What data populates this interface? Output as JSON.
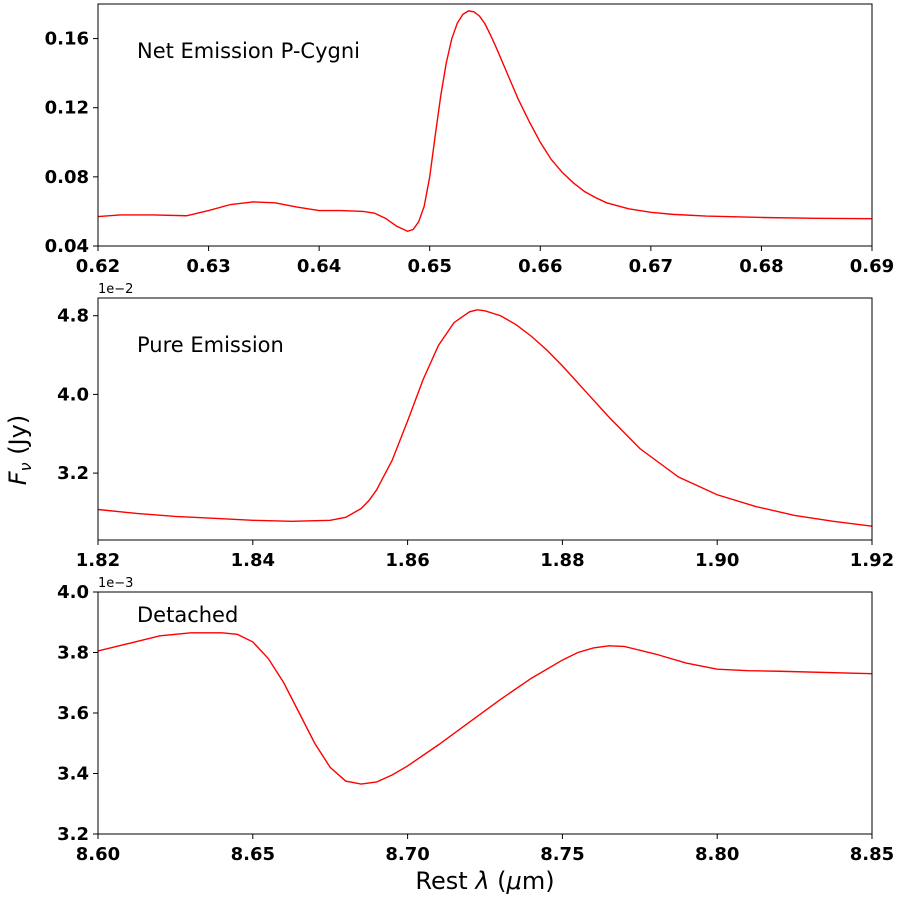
{
  "figure": {
    "ylabel": "F",
    "ylabel_sub": "ν",
    "ylabel_unit": " (Jy)",
    "xlabel_prefix": "Rest ",
    "xlabel_lambda": "λ",
    "xlabel_suffix_open": " (",
    "xlabel_mu": "μ",
    "xlabel_suffix_close": "m)",
    "line_color": "#ff0000"
  },
  "chart_data": [
    {
      "type": "line",
      "title": "",
      "annotation": "Net Emission P-Cygni",
      "offset_text": "",
      "xlim": [
        0.62,
        0.69
      ],
      "ylim": [
        0.04,
        0.18
      ],
      "xticks": [
        "0.62",
        "0.63",
        "0.64",
        "0.65",
        "0.66",
        "0.67",
        "0.68",
        "0.69"
      ],
      "yticks": [
        "0.04",
        "0.08",
        "0.12",
        "0.16"
      ],
      "series": [
        {
          "color": "#ff0000",
          "x": [
            0.62,
            0.622,
            0.625,
            0.628,
            0.63,
            0.632,
            0.634,
            0.636,
            0.638,
            0.64,
            0.642,
            0.644,
            0.645,
            0.646,
            0.647,
            0.648,
            0.6485,
            0.649,
            0.6495,
            0.65,
            0.6505,
            0.651,
            0.6515,
            0.652,
            0.6525,
            0.653,
            0.6535,
            0.654,
            0.6545,
            0.655,
            0.6555,
            0.656,
            0.657,
            0.658,
            0.659,
            0.66,
            0.661,
            0.662,
            0.663,
            0.664,
            0.665,
            0.666,
            0.668,
            0.67,
            0.672,
            0.675,
            0.68,
            0.685,
            0.69
          ],
          "y": [
            0.057,
            0.058,
            0.058,
            0.0575,
            0.0605,
            0.064,
            0.0655,
            0.065,
            0.0625,
            0.0605,
            0.0605,
            0.06,
            0.059,
            0.056,
            0.0515,
            0.0485,
            0.0495,
            0.054,
            0.063,
            0.08,
            0.104,
            0.127,
            0.146,
            0.16,
            0.169,
            0.174,
            0.176,
            0.1755,
            0.173,
            0.1685,
            0.162,
            0.155,
            0.14,
            0.125,
            0.112,
            0.1,
            0.09,
            0.0825,
            0.0765,
            0.0715,
            0.068,
            0.065,
            0.0615,
            0.0595,
            0.0583,
            0.0573,
            0.0565,
            0.056,
            0.0558
          ]
        }
      ]
    },
    {
      "type": "line",
      "title": "",
      "annotation": "Pure Emission",
      "offset_text": "1e−2",
      "xlim": [
        1.82,
        1.92
      ],
      "ylim": [
        2.52,
        4.98
      ],
      "xticks": [
        "1.82",
        "1.84",
        "1.86",
        "1.88",
        "1.90",
        "1.92"
      ],
      "yticks": [
        "3.2",
        "4.0",
        "4.8"
      ],
      "series": [
        {
          "color": "#ff0000",
          "x": [
            1.82,
            1.825,
            1.83,
            1.835,
            1.84,
            1.845,
            1.85,
            1.852,
            1.854,
            1.855,
            1.856,
            1.858,
            1.86,
            1.862,
            1.864,
            1.866,
            1.868,
            1.869,
            1.87,
            1.872,
            1.874,
            1.876,
            1.878,
            1.88,
            1.883,
            1.886,
            1.89,
            1.895,
            1.9,
            1.905,
            1.91,
            1.915,
            1.92
          ],
          "y": [
            2.83,
            2.79,
            2.76,
            2.74,
            2.72,
            2.71,
            2.72,
            2.75,
            2.84,
            2.92,
            3.03,
            3.33,
            3.73,
            4.15,
            4.5,
            4.73,
            4.84,
            4.86,
            4.85,
            4.8,
            4.71,
            4.59,
            4.45,
            4.29,
            4.03,
            3.77,
            3.45,
            3.16,
            2.98,
            2.86,
            2.77,
            2.71,
            2.66
          ]
        }
      ]
    },
    {
      "type": "line",
      "title": "",
      "annotation": "Detached",
      "offset_text": "1e−3",
      "xlim": [
        8.6,
        8.85
      ],
      "ylim": [
        3.2,
        4.0
      ],
      "xticks": [
        "8.60",
        "8.65",
        "8.70",
        "8.75",
        "8.80",
        "8.85"
      ],
      "yticks": [
        "3.2",
        "3.4",
        "3.6",
        "3.8",
        "4.0"
      ],
      "series": [
        {
          "color": "#ff0000",
          "x": [
            8.6,
            8.61,
            8.62,
            8.63,
            8.64,
            8.645,
            8.65,
            8.655,
            8.66,
            8.665,
            8.67,
            8.675,
            8.68,
            8.685,
            8.69,
            8.695,
            8.7,
            8.71,
            8.72,
            8.73,
            8.74,
            8.75,
            8.755,
            8.76,
            8.765,
            8.77,
            8.78,
            8.79,
            8.8,
            8.81,
            8.82,
            8.85
          ],
          "y": [
            3.805,
            3.83,
            3.855,
            3.865,
            3.865,
            3.86,
            3.835,
            3.78,
            3.7,
            3.6,
            3.5,
            3.42,
            3.375,
            3.365,
            3.372,
            3.395,
            3.425,
            3.495,
            3.57,
            3.645,
            3.715,
            3.775,
            3.8,
            3.815,
            3.822,
            3.82,
            3.795,
            3.765,
            3.745,
            3.74,
            3.738,
            3.73
          ]
        }
      ]
    }
  ]
}
